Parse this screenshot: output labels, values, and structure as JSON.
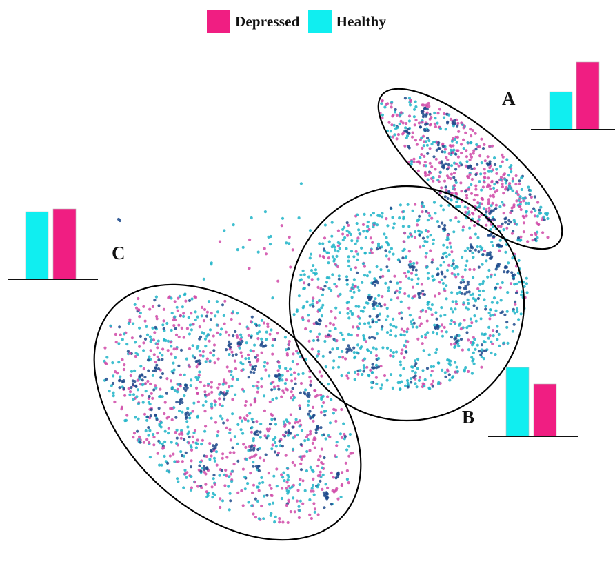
{
  "legend": {
    "depressed": {
      "label": "Depressed",
      "color": "#f01e82"
    },
    "healthy": {
      "label": "Healthy",
      "color": "#10eef0"
    }
  },
  "colors": {
    "depressed_points": "#d04aa8",
    "healthy_points": "#1fb4c8",
    "dense_points": "#1e4a8c",
    "ellipse_stroke": "#000000"
  },
  "chart_data": {
    "type": "scatter",
    "title": "",
    "xlabel": "",
    "ylabel": "",
    "grid": false,
    "legend_position": "top-center",
    "series": [
      {
        "name": "Depressed"
      },
      {
        "name": "Healthy"
      }
    ],
    "clusters": [
      {
        "label": "A",
        "healthy_bar": 0.56,
        "depressed_bar": 1.0
      },
      {
        "label": "B",
        "healthy_bar": 1.0,
        "depressed_bar": 0.76
      },
      {
        "label": "C",
        "healthy_bar": 0.96,
        "depressed_bar": 1.0
      }
    ]
  }
}
